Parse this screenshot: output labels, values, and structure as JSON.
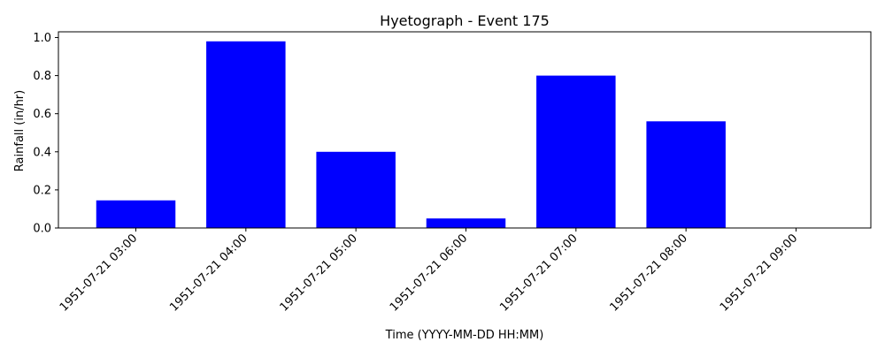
{
  "chart_data": {
    "type": "bar",
    "title": "Hyetograph - Event 175",
    "xlabel": "Time (YYYY-MM-DD HH:MM)",
    "ylabel": "Rainfall (in/hr)",
    "categories": [
      "1951-07-21 03:00",
      "1951-07-21 04:00",
      "1951-07-21 05:00",
      "1951-07-21 06:00",
      "1951-07-21 07:00",
      "1951-07-21 08:00",
      "1951-07-21 09:00"
    ],
    "values": [
      0.145,
      0.98,
      0.4,
      0.05,
      0.8,
      0.56,
      0.0
    ],
    "ylim": [
      0,
      1.03
    ],
    "yticks": [
      "0.0",
      "0.2",
      "0.4",
      "0.6",
      "0.8",
      "1.0"
    ],
    "bar_color": "#0000ff",
    "grid": false,
    "legend": "none"
  }
}
